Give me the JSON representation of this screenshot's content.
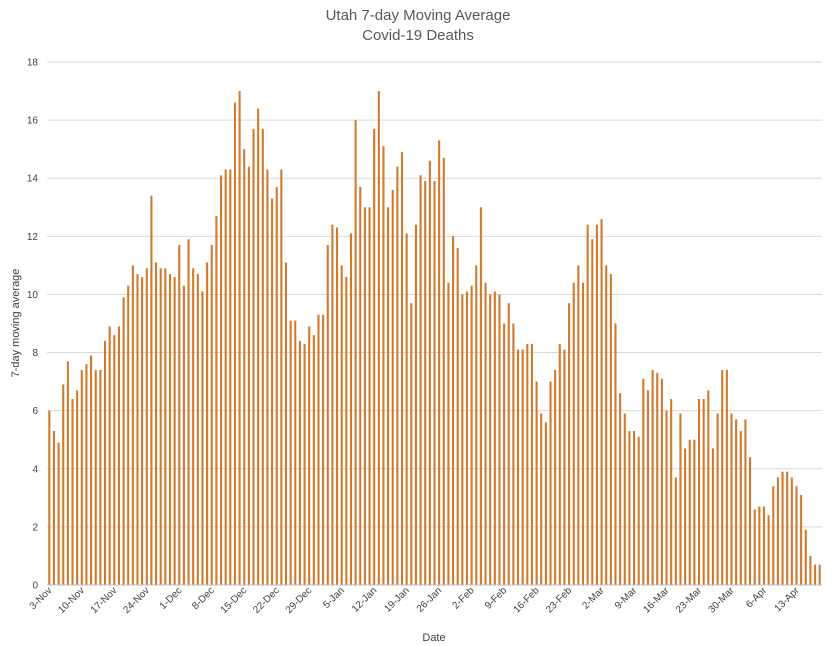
{
  "chart_data": {
    "type": "bar",
    "title": "Utah 7-day Moving Average",
    "subtitle": "Covid-19 Deaths",
    "xlabel": "Date",
    "ylabel": "7-day moving average",
    "ylim": [
      0,
      18
    ],
    "yticks": [
      "0",
      "2",
      "4",
      "6",
      "8",
      "10",
      "12",
      "14",
      "16",
      "18"
    ],
    "grid": true,
    "legend": "none",
    "bar_color": "#d07a2c",
    "tick_labels": [
      "3-Nov",
      "10-Nov",
      "17-Nov",
      "24-Nov",
      "1-Dec",
      "8-Dec",
      "15-Dec",
      "22-Dec",
      "29-Dec",
      "5-Jan",
      "12-Jan",
      "19-Jan",
      "26-Jan",
      "2-Feb",
      "9-Feb",
      "16-Feb",
      "23-Feb",
      "2-Mar",
      "9-Mar",
      "16-Mar",
      "23-Mar",
      "30-Mar",
      "6-Apr",
      "13-Apr"
    ],
    "first_date": "3-Nov",
    "last_date": "19-Apr",
    "values": [
      6.0,
      5.3,
      4.9,
      6.9,
      7.7,
      6.4,
      6.7,
      7.4,
      7.6,
      7.9,
      7.4,
      7.4,
      8.4,
      8.9,
      8.6,
      8.9,
      9.9,
      10.3,
      11.0,
      10.7,
      10.6,
      10.9,
      13.4,
      11.1,
      10.9,
      10.9,
      10.7,
      10.6,
      11.7,
      10.3,
      11.9,
      10.9,
      10.7,
      10.1,
      11.1,
      11.7,
      12.7,
      14.1,
      14.3,
      14.3,
      16.6,
      17.0,
      15.0,
      14.4,
      15.7,
      16.4,
      15.7,
      14.3,
      13.3,
      13.7,
      14.3,
      11.1,
      9.1,
      9.1,
      8.4,
      8.3,
      8.9,
      8.6,
      9.3,
      9.3,
      11.7,
      12.4,
      12.3,
      11.0,
      10.6,
      12.1,
      16.0,
      13.7,
      13.0,
      13.0,
      15.7,
      17.0,
      15.1,
      13.0,
      13.6,
      14.4,
      14.9,
      12.1,
      9.7,
      12.4,
      14.1,
      13.9,
      14.6,
      13.9,
      15.3,
      14.7,
      10.4,
      12.0,
      11.6,
      10.0,
      10.1,
      10.3,
      11.0,
      13.0,
      10.4,
      10.0,
      10.1,
      10.0,
      9.0,
      9.7,
      9.0,
      8.1,
      8.1,
      8.3,
      8.3,
      7.0,
      5.9,
      5.6,
      7.0,
      7.4,
      8.3,
      8.1,
      9.7,
      10.4,
      11.0,
      10.4,
      12.4,
      11.9,
      12.4,
      12.6,
      11.0,
      10.7,
      9.0,
      6.6,
      5.9,
      5.3,
      5.3,
      5.1,
      7.1,
      6.7,
      7.4,
      7.3,
      7.1,
      6.0,
      6.4,
      3.7,
      5.9,
      4.7,
      5.0,
      5.0,
      6.4,
      6.4,
      6.7,
      4.7,
      5.9,
      7.4,
      7.4,
      5.9,
      5.7,
      5.3,
      5.7,
      4.4,
      2.6,
      2.7,
      2.7,
      2.4,
      3.4,
      3.7,
      3.9,
      3.9,
      3.7,
      3.4,
      3.1,
      1.9,
      1.0,
      0.7,
      0.7
    ]
  }
}
